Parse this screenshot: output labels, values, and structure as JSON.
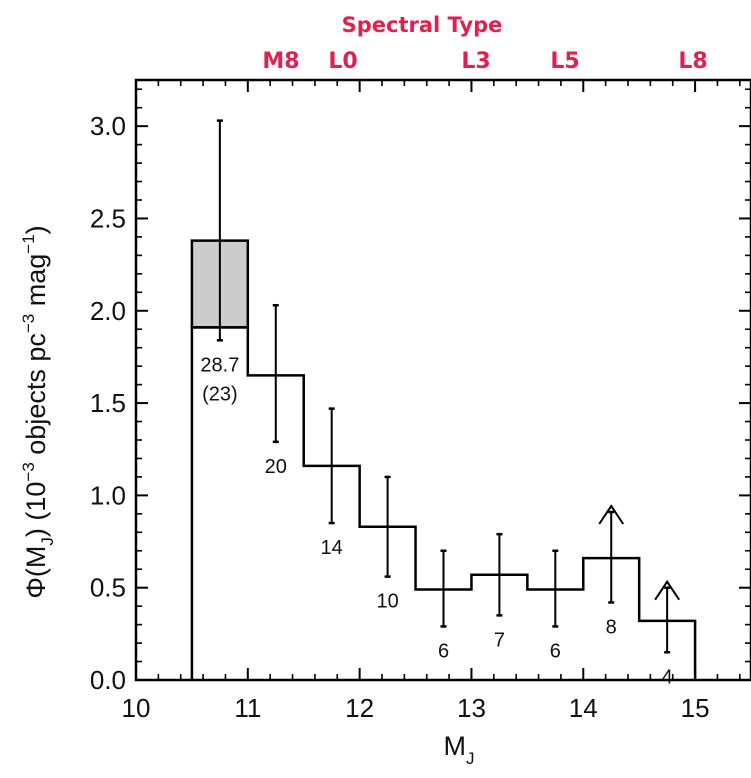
{
  "chart_data": {
    "type": "bar",
    "subtype": "histogram-step",
    "xlabel": "M",
    "xlabel_sub": "J",
    "xlim": [
      10,
      15.5
    ],
    "ylim": [
      0,
      3.25
    ],
    "xticks": [
      "10",
      "11",
      "12",
      "13",
      "14",
      "15"
    ],
    "yticks": [
      "0.0",
      "0.5",
      "1.0",
      "1.5",
      "2.0",
      "2.5",
      "3.0"
    ],
    "ylabel_parts": {
      "phi": "Φ(M",
      "phi_sub": "J",
      "close": ") (10",
      "exp1": "−3",
      "mid": " objects pc",
      "exp2": "−3",
      "mag": " mag",
      "exp3": "−1",
      "end": ")"
    },
    "top_axis": {
      "title": "Spectral Type",
      "labels": [
        "M8",
        "L0",
        "L3",
        "L5",
        "L8"
      ]
    },
    "bins": [
      {
        "x_lo": 10.5,
        "x_hi": 11.0,
        "y": 1.91,
        "y_extended": 2.38,
        "err_lo": 1.84,
        "err_hi": 3.03,
        "count": "28.7",
        "count2": "(23)",
        "lower_limit": false
      },
      {
        "x_lo": 11.0,
        "x_hi": 11.5,
        "y": 1.65,
        "err_lo": 1.29,
        "err_hi": 2.03,
        "count": "20",
        "lower_limit": false
      },
      {
        "x_lo": 11.5,
        "x_hi": 12.0,
        "y": 1.16,
        "err_lo": 0.85,
        "err_hi": 1.47,
        "count": "14",
        "lower_limit": false
      },
      {
        "x_lo": 12.0,
        "x_hi": 12.5,
        "y": 0.83,
        "err_lo": 0.56,
        "err_hi": 1.1,
        "count": "10",
        "lower_limit": false
      },
      {
        "x_lo": 12.5,
        "x_hi": 13.0,
        "y": 0.49,
        "err_lo": 0.29,
        "err_hi": 0.7,
        "count": "6",
        "lower_limit": false
      },
      {
        "x_lo": 13.0,
        "x_hi": 13.5,
        "y": 0.57,
        "err_lo": 0.35,
        "err_hi": 0.79,
        "count": "7",
        "lower_limit": false
      },
      {
        "x_lo": 13.5,
        "x_hi": 14.0,
        "y": 0.49,
        "err_lo": 0.29,
        "err_hi": 0.7,
        "count": "6",
        "lower_limit": false
      },
      {
        "x_lo": 14.0,
        "x_hi": 14.5,
        "y": 0.66,
        "err_lo": 0.42,
        "err_hi": 0.91,
        "count": "8",
        "lower_limit": true
      },
      {
        "x_lo": 14.5,
        "x_hi": 15.0,
        "y": 0.32,
        "err_lo": 0.15,
        "err_hi": 0.5,
        "count": "4",
        "lower_limit": true
      }
    ],
    "colors": {
      "line": "#000000",
      "shaded_bin": "#cccccc",
      "spectral_type": "#e0214f"
    }
  }
}
